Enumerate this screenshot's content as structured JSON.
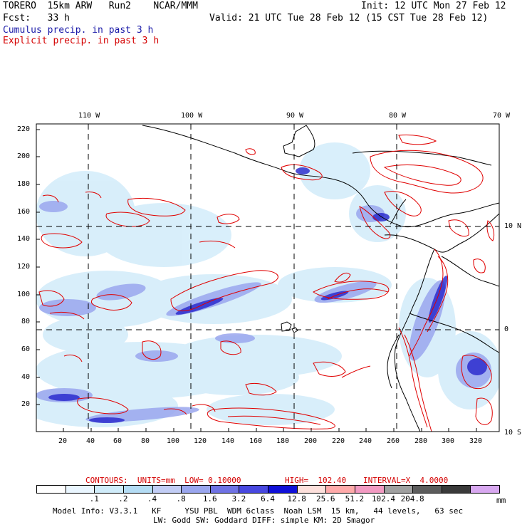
{
  "header": {
    "line1_left": "TORERO  15km ARW   Run2    NCAR/MMM",
    "line1_right": "Init: 12 UTC Mon 27 Feb 12",
    "line2_left": "Fcst:   33 h",
    "line2_right": "Valid: 21 UTC Tue 28 Feb 12 (15 CST Tue 28 Feb 12)",
    "line3": "Cumulus precip. in past 3 h",
    "line4": "Explicit precip. in past 3 h"
  },
  "map": {
    "top_lon_labels": [
      "110 W",
      "100 W",
      "90 W",
      "80 W",
      "70 W"
    ],
    "right_lat_labels": [
      "10 N",
      "0",
      "10 S"
    ],
    "y_ticks": [
      "220",
      "200",
      "180",
      "160",
      "140",
      "120",
      "100",
      "80",
      "60",
      "40",
      "20"
    ],
    "x_ticks": [
      "20",
      "40",
      "60",
      "80",
      "100",
      "120",
      "140",
      "160",
      "180",
      "200",
      "220",
      "240",
      "260",
      "280",
      "300",
      "320"
    ]
  },
  "contours_info": {
    "text1": "CONTOURS:  UNITS=mm  LOW= 0.10000",
    "text2": "HIGH=  102.40",
    "text3": "INTERVAL=X  4.0000"
  },
  "colorbar": {
    "colors": [
      "#ffffff",
      "#eaf6ff",
      "#d0ecfa",
      "#b4dcf4",
      "#c2cdf5",
      "#9aa6ee",
      "#6f72e4",
      "#4848e0",
      "#1010d8",
      "#fde0dc",
      "#ffaaaa",
      "#f29ac2",
      "#a0a0a0",
      "#5c5c5c",
      "#3a3a3a",
      "#d8a8f0"
    ],
    "labels": [
      ".1",
      ".2",
      ".4",
      ".8",
      "1.6",
      "3.2",
      "6.4",
      "12.8",
      "25.6",
      "51.2",
      "102.4",
      "204.8"
    ],
    "units": "mm"
  },
  "footer": {
    "line1": "Model Info: V3.3.1   KF     YSU PBL  WDM 6class  Noah LSM  15 km,   44 levels,   63 sec",
    "line2": "LW: Godd SW: Goddard DIFF: simple KM: 2D Smagor"
  }
}
